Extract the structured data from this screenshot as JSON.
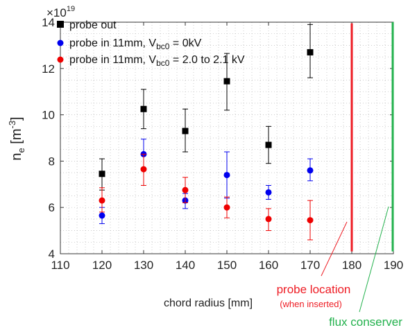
{
  "chart_data": {
    "type": "scatter",
    "title": "",
    "xlabel": "chord radius [mm]",
    "ylabel_main": "n",
    "ylabel_sub": "e",
    "ylabel_unit_pre": " [m",
    "ylabel_unit_sup": "-3",
    "ylabel_unit_post": "]",
    "xlim": [
      110,
      190
    ],
    "ylim": [
      4,
      14
    ],
    "x_ticks": [
      110,
      120,
      130,
      140,
      150,
      160,
      170,
      180,
      190
    ],
    "y_ticks": [
      4,
      6,
      8,
      10,
      12,
      14
    ],
    "y_multiplier_base": "×10",
    "y_multiplier_exp": "19",
    "grid": "minor dotted",
    "legend_position": "top-left",
    "series": [
      {
        "name": "probe out",
        "legend_parts": [
          "probe out"
        ],
        "color": "#000000",
        "marker": "square",
        "x": [
          120,
          130,
          140,
          150,
          160,
          170
        ],
        "y": [
          7.45,
          10.25,
          9.3,
          11.45,
          8.7,
          12.7
        ],
        "y_low": [
          6.75,
          9.4,
          8.4,
          10.2,
          7.9,
          11.6
        ],
        "y_high": [
          8.1,
          11.1,
          10.25,
          12.65,
          9.5,
          13.9
        ]
      },
      {
        "name": "probe in 11mm, Vbc0 = 0kV",
        "legend_parts": [
          "probe in 11mm, V",
          "bc0",
          " = 0kV"
        ],
        "color": "#0000ee",
        "marker": "circle",
        "x": [
          120,
          130,
          140,
          150,
          160,
          170
        ],
        "y": [
          5.65,
          8.3,
          6.3,
          7.4,
          6.65,
          7.6
        ],
        "y_low": [
          5.3,
          7.65,
          5.95,
          6.4,
          6.35,
          7.15
        ],
        "y_high": [
          6.0,
          8.95,
          6.6,
          8.4,
          6.95,
          8.1
        ]
      },
      {
        "name": "probe in 11mm, Vbc0 = 2.0 to 2.1 kV",
        "legend_parts": [
          "probe in 11mm, V",
          "bc0",
          " = 2.0 to 2.1 kV"
        ],
        "color": "#ee0000",
        "marker": "circle",
        "x": [
          120,
          130,
          140,
          150,
          160,
          170
        ],
        "y": [
          6.3,
          7.65,
          6.75,
          6.0,
          5.5,
          5.45
        ],
        "y_low": [
          5.8,
          6.95,
          6.2,
          5.55,
          5.0,
          4.6
        ],
        "y_high": [
          6.85,
          8.3,
          7.3,
          6.45,
          5.95,
          6.3
        ]
      }
    ],
    "vertical_lines": [
      {
        "name": "probe location",
        "x": 180,
        "y_from": 4.1,
        "y_to": 13.95,
        "color": "#ee1c24"
      },
      {
        "name": "flux conserver",
        "x": 190,
        "y_from": 4.1,
        "y_to": 14.0,
        "color": "#22b14c"
      }
    ],
    "annotations": [
      {
        "line1": "probe location",
        "line2": "(when inserted)",
        "color": "#ee1c24"
      },
      {
        "line1": "flux conserver",
        "color": "#22b14c"
      }
    ]
  }
}
